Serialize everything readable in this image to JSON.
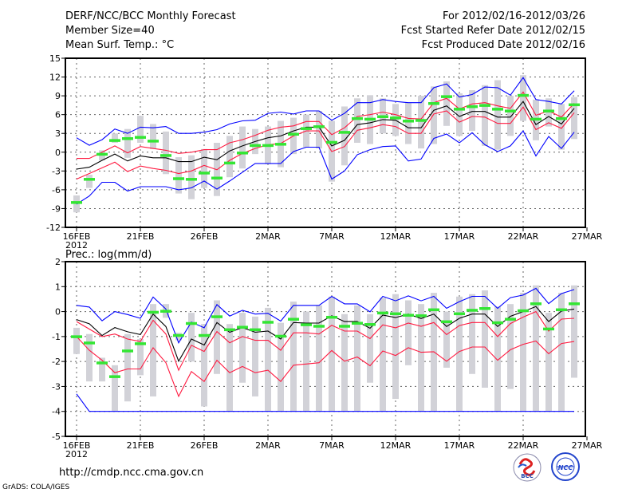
{
  "header": {
    "title": "DERF/NCC/BCC Monthly Forecast",
    "member_size": "Member Size=40",
    "variable": "Mean Surf. Temp.: °C",
    "period": "For 2012/02/16-2012/03/26",
    "started": "Fcst Started Refer Date 2012/02/15",
    "produced": "Fcst Produced Date 2012/02/16"
  },
  "footer": {
    "url": "http://cmdp.ncc.cma.gov.cn",
    "credit": "GrADS: COLA/IGES",
    "logo_bcc": "BCC",
    "logo_ncc": "NCC"
  },
  "colors": {
    "max_min": "#0000ff",
    "spread": "#ff1a40",
    "mean": "#000000",
    "obs": "#33e633",
    "box": "#d2d2d8"
  },
  "chart_data": [
    {
      "type": "line",
      "title": "Mean Surf. Temp.: °C",
      "x_tick_labels": [
        "16FEB",
        "21FEB",
        "26FEB",
        "2MAR",
        "7MAR",
        "12MAR",
        "17MAR",
        "22MAR",
        "27MAR"
      ],
      "x_year_label": "2012",
      "y_ticks": [
        15,
        12,
        9,
        6,
        3,
        0,
        -3,
        -6,
        -9,
        -12
      ],
      "ylim": [
        -12,
        15
      ],
      "grid": true,
      "x_days": 40,
      "series": [
        {
          "name": "ensemble_max",
          "color_key": "max_min",
          "values": [
            2.3,
            1.1,
            2.0,
            3.7,
            3.0,
            4.0,
            3.9,
            4.1,
            3.0,
            3.0,
            3.2,
            3.6,
            4.5,
            5.0,
            5.1,
            6.2,
            6.4,
            6.1,
            6.6,
            6.6,
            5.1,
            6.2,
            7.9,
            7.9,
            8.4,
            8.1,
            7.9,
            7.9,
            10.3,
            10.9,
            8.8,
            9.2,
            10.4,
            10.3,
            9.1,
            11.9,
            8.4,
            8.1,
            7.7,
            9.8
          ]
        },
        {
          "name": "spread_upper",
          "color_key": "spread",
          "values": [
            -1.0,
            -1.0,
            0.0,
            1.0,
            -0.1,
            0.9,
            0.6,
            0.3,
            -0.2,
            0.0,
            0.4,
            0.4,
            1.5,
            2.0,
            2.7,
            3.5,
            4.0,
            4.2,
            4.9,
            4.9,
            2.8,
            3.9,
            5.7,
            6.0,
            6.4,
            6.0,
            5.4,
            5.3,
            7.9,
            8.6,
            6.9,
            7.7,
            7.9,
            7.4,
            7.0,
            9.6,
            5.9,
            6.6,
            5.6,
            7.8
          ]
        },
        {
          "name": "ensemble_mean",
          "color_key": "mean",
          "values": [
            -2.7,
            -2.4,
            -1.3,
            -0.3,
            -1.4,
            -0.6,
            -0.9,
            -0.9,
            -1.5,
            -1.5,
            -0.8,
            -1.2,
            0.2,
            1.0,
            1.7,
            2.3,
            2.6,
            3.4,
            4.0,
            4.0,
            1.0,
            1.9,
            4.4,
            4.7,
            5.2,
            5.1,
            3.9,
            3.9,
            6.7,
            7.4,
            5.7,
            6.5,
            6.5,
            5.6,
            5.6,
            8.1,
            4.4,
            5.7,
            4.5,
            7.0
          ]
        },
        {
          "name": "spread_lower",
          "color_key": "spread",
          "values": [
            -4.3,
            -3.4,
            -2.5,
            -1.6,
            -3.1,
            -2.2,
            -2.6,
            -2.9,
            -3.4,
            -3.0,
            -2.1,
            -2.8,
            -1.3,
            -0.2,
            0.6,
            1.2,
            1.4,
            2.6,
            3.4,
            3.4,
            0.1,
            0.9,
            3.5,
            3.9,
            4.4,
            4.1,
            3.0,
            3.0,
            6.1,
            6.6,
            4.8,
            5.7,
            5.6,
            4.6,
            4.6,
            7.2,
            3.6,
            4.7,
            3.8,
            6.3
          ]
        },
        {
          "name": "ensemble_min",
          "color_key": "max_min",
          "values": [
            -8.3,
            -7.0,
            -4.8,
            -4.8,
            -6.2,
            -5.5,
            -5.5,
            -5.5,
            -6.0,
            -5.7,
            -4.6,
            -5.9,
            -4.6,
            -3.2,
            -1.8,
            -1.8,
            -1.8,
            0.1,
            0.8,
            0.8,
            -4.3,
            -3.0,
            -0.4,
            0.4,
            0.9,
            1.0,
            -1.4,
            -1.1,
            2.2,
            2.9,
            1.5,
            3.1,
            1.2,
            0.1,
            1.0,
            3.4,
            -0.6,
            2.5,
            0.6,
            3.2
          ]
        }
      ],
      "observed": [
        -8.0,
        -4.3,
        -0.3,
        1.9,
        2.2,
        2.4,
        1.8,
        -0.5,
        -4.2,
        -4.3,
        -3.3,
        -4.1,
        -1.7,
        -0.1,
        1.1,
        1.1,
        1.3,
        2.9,
        3.8,
        4.1,
        1.6,
        3.2,
        5.4,
        5.3,
        5.7,
        5.5,
        5.0,
        5.1,
        7.8,
        8.9,
        6.9,
        7.3,
        7.5,
        6.9,
        6.6,
        9.1,
        5.3,
        6.6,
        5.4,
        7.6
      ],
      "box_low": [
        -9.6,
        -5.7,
        -1.3,
        1.5,
        -0.9,
        1.5,
        0.5,
        -3.5,
        -6.6,
        -7.5,
        -5.7,
        -7.0,
        -4.0,
        -2.6,
        -0.3,
        -1.9,
        -2.4,
        -0.3,
        0.8,
        0.6,
        -4.7,
        -2.1,
        1.5,
        1.3,
        3.0,
        2.6,
        1.3,
        0.6,
        1.3,
        4.2,
        2.6,
        3.4,
        1.0,
        0.4,
        2.6,
        5.0,
        1.9,
        4.1,
        0.4,
        2.1
      ],
      "box_high": [
        -6.9,
        -3.6,
        0.3,
        3.0,
        3.7,
        5.8,
        4.5,
        3.3,
        -0.8,
        -0.5,
        0.5,
        1.5,
        2.6,
        4.1,
        3.7,
        4.1,
        5.0,
        5.5,
        6.0,
        6.6,
        5.0,
        7.3,
        8.6,
        9.1,
        8.6,
        7.7,
        7.9,
        9.0,
        10.5,
        11.3,
        9.4,
        9.9,
        10.7,
        11.5,
        9.0,
        12.3,
        8.4,
        8.6,
        7.7,
        8.8
      ]
    },
    {
      "type": "line",
      "title": "Prec.: log(mm/d)",
      "x_tick_labels": [
        "16FEB",
        "21FEB",
        "26FEB",
        "2MAR",
        "7MAR",
        "12MAR",
        "17MAR",
        "22MAR",
        "27MAR"
      ],
      "x_year_label": "2012",
      "y_ticks": [
        2,
        1,
        0,
        -1,
        -2,
        -3,
        -4,
        -5
      ],
      "ylim": [
        -5,
        2
      ],
      "grid": true,
      "x_days": 40,
      "series": [
        {
          "name": "ensemble_max",
          "color_key": "max_min",
          "values": [
            0.25,
            0.18,
            -0.37,
            0.0,
            -0.12,
            -0.27,
            0.58,
            0.1,
            -1.25,
            -0.42,
            -0.65,
            0.28,
            -0.18,
            0.05,
            -0.1,
            -0.07,
            -0.38,
            0.25,
            0.25,
            0.25,
            0.61,
            0.31,
            0.31,
            -0.01,
            0.61,
            0.43,
            0.63,
            0.43,
            0.61,
            0.13,
            0.4,
            0.61,
            0.61,
            0.13,
            0.56,
            0.66,
            0.93,
            0.32,
            0.72,
            0.88
          ]
        },
        {
          "name": "spread_upper",
          "color_key": "spread",
          "values": [
            -0.4,
            -0.7,
            -1.0,
            -0.9,
            -1.1,
            -1.2,
            -0.35,
            -0.9,
            -2.35,
            -1.35,
            -1.6,
            -0.8,
            -1.25,
            -1.0,
            -1.15,
            -1.15,
            -1.55,
            -0.85,
            -0.85,
            -0.9,
            -0.55,
            -0.78,
            -0.78,
            -1.08,
            -0.53,
            -0.65,
            -0.46,
            -0.59,
            -0.44,
            -0.92,
            -0.56,
            -0.44,
            -0.44,
            -1.0,
            -0.48,
            -0.22,
            0.0,
            -0.78,
            -0.3,
            -0.27
          ]
        },
        {
          "name": "ensemble_mean",
          "color_key": "mean",
          "values": [
            -0.32,
            -0.49,
            -0.96,
            -0.64,
            -0.81,
            -0.92,
            -0.1,
            -0.6,
            -1.99,
            -1.1,
            -1.34,
            -0.44,
            -0.83,
            -0.64,
            -0.83,
            -0.78,
            -1.1,
            -0.44,
            -0.46,
            -0.46,
            -0.17,
            -0.4,
            -0.4,
            -0.67,
            -0.14,
            -0.24,
            -0.1,
            -0.28,
            -0.1,
            -0.6,
            -0.27,
            -0.1,
            -0.1,
            -0.6,
            -0.19,
            0.0,
            0.2,
            -0.4,
            0.02,
            0.1
          ]
        },
        {
          "name": "spread_lower",
          "color_key": "spread",
          "values": [
            -1.0,
            -1.55,
            -1.95,
            -2.45,
            -2.3,
            -2.3,
            -1.45,
            -2.05,
            -3.4,
            -2.4,
            -2.8,
            -1.95,
            -2.45,
            -2.2,
            -2.45,
            -2.35,
            -2.8,
            -2.15,
            -2.1,
            -2.05,
            -1.56,
            -1.99,
            -1.82,
            -2.17,
            -1.58,
            -1.76,
            -1.45,
            -1.63,
            -1.61,
            -1.99,
            -1.6,
            -1.42,
            -1.42,
            -1.95,
            -1.53,
            -1.31,
            -1.18,
            -1.69,
            -1.28,
            -1.2
          ]
        },
        {
          "name": "ensemble_min",
          "color_key": "max_min",
          "values": [
            -3.3,
            -4,
            -4,
            -4,
            -4,
            -4,
            -4,
            -4,
            -4,
            -4,
            -4,
            -4,
            -4,
            -4,
            -4,
            -4,
            -4,
            -4,
            -4,
            -4,
            -4,
            -4,
            -4,
            -4,
            -4,
            -4,
            -4,
            -4,
            -4,
            -4,
            -4,
            -4,
            -4,
            -4,
            -4,
            -4,
            -4,
            -4,
            -4,
            -4
          ]
        }
      ],
      "observed": [
        -1.0,
        -1.25,
        -2.05,
        -2.6,
        -1.57,
        -1.28,
        -0.02,
        0.02,
        -0.95,
        -0.47,
        -0.95,
        -0.2,
        -0.72,
        -0.62,
        -0.72,
        -0.42,
        -0.98,
        -0.3,
        -0.52,
        -0.58,
        -0.22,
        -0.58,
        -0.46,
        -0.51,
        -0.05,
        -0.08,
        -0.14,
        -0.16,
        0.08,
        -0.4,
        -0.08,
        0.06,
        0.13,
        -0.44,
        -0.3,
        0.04,
        0.32,
        -0.69,
        0.08,
        0.32
      ],
      "box_low": [
        -1.7,
        -2.8,
        -2.8,
        -4,
        -3.6,
        -2.55,
        -3.4,
        -0.25,
        -1.15,
        -2.0,
        -3.8,
        -2.5,
        -4,
        -2.85,
        -3.4,
        -4,
        -4,
        -4,
        -4,
        -4,
        -4,
        -4,
        -4,
        -2.85,
        -4,
        -3.5,
        -2.15,
        -4,
        -4,
        -2.25,
        -4,
        -2.5,
        -3.05,
        -4,
        -3.1,
        -4,
        -4,
        -4,
        -4,
        -2.65
      ],
      "box_high": [
        -0.65,
        -0.9,
        -1.85,
        -2.15,
        -0.9,
        -1.1,
        0.3,
        0.3,
        -0.85,
        -0.05,
        -0.5,
        0.45,
        -0.5,
        -0.05,
        -0.2,
        0.15,
        -0.45,
        0.4,
        0.0,
        0.25,
        0.6,
        -0.1,
        0.25,
        -0.1,
        0.55,
        0.7,
        0.45,
        0.3,
        0.75,
        0.0,
        0.6,
        0.7,
        0.85,
        0.2,
        0.3,
        0.75,
        1.05,
        -0.05,
        0.75,
        1.05
      ]
    }
  ]
}
